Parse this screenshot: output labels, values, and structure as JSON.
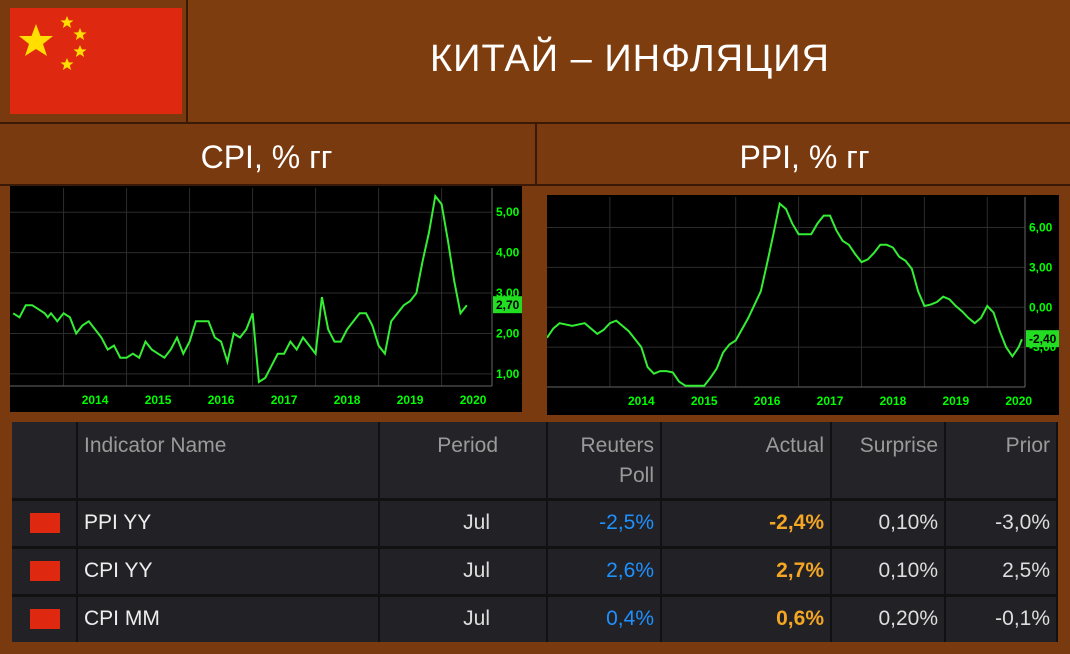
{
  "title": "КИТАЙ – ИНФЛЯЦИЯ",
  "cpi_title": "CPI, % гг",
  "ppi_title": "PPI, % гг",
  "colors": {
    "background": "#7a3a10",
    "flag_red": "#de2910",
    "flag_yellow": "#ffde00",
    "line": "#33ee33",
    "poll": "#1e90ff",
    "actual": "#f5a623"
  },
  "chart_data": [
    {
      "type": "line",
      "title": "CPI, % гг",
      "x_ticks": [
        "2014",
        "2015",
        "2016",
        "2017",
        "2018",
        "2019",
        "2020"
      ],
      "y_ticks": [
        "5,00",
        "4,00",
        "3,00",
        "2,00",
        "1,00"
      ],
      "last_label": "2,70",
      "ylim": [
        0.7,
        5.6
      ],
      "xlim": [
        2013.15,
        2020.8
      ],
      "series": [
        {
          "values": [
            [
              2013.2,
              2.5
            ],
            [
              2013.3,
              2.4
            ],
            [
              2013.4,
              2.7
            ],
            [
              2013.5,
              2.7
            ],
            [
              2013.6,
              2.6
            ],
            [
              2013.7,
              2.5
            ],
            [
              2013.75,
              2.4
            ],
            [
              2013.8,
              2.5
            ],
            [
              2013.9,
              2.3
            ],
            [
              2014.0,
              2.5
            ],
            [
              2014.1,
              2.4
            ],
            [
              2014.2,
              2.0
            ],
            [
              2014.3,
              2.2
            ],
            [
              2014.4,
              2.3
            ],
            [
              2014.5,
              2.1
            ],
            [
              2014.6,
              1.9
            ],
            [
              2014.7,
              1.6
            ],
            [
              2014.8,
              1.7
            ],
            [
              2014.9,
              1.4
            ],
            [
              2015.0,
              1.4
            ],
            [
              2015.1,
              1.5
            ],
            [
              2015.2,
              1.4
            ],
            [
              2015.3,
              1.8
            ],
            [
              2015.4,
              1.6
            ],
            [
              2015.5,
              1.5
            ],
            [
              2015.6,
              1.4
            ],
            [
              2015.7,
              1.6
            ],
            [
              2015.8,
              1.9
            ],
            [
              2015.9,
              1.5
            ],
            [
              2016.0,
              1.8
            ],
            [
              2016.1,
              2.3
            ],
            [
              2016.2,
              2.3
            ],
            [
              2016.3,
              2.3
            ],
            [
              2016.4,
              1.9
            ],
            [
              2016.5,
              1.8
            ],
            [
              2016.6,
              1.3
            ],
            [
              2016.7,
              2.0
            ],
            [
              2016.8,
              1.9
            ],
            [
              2016.9,
              2.1
            ],
            [
              2017.0,
              2.5
            ],
            [
              2017.1,
              0.8
            ],
            [
              2017.2,
              0.9
            ],
            [
              2017.3,
              1.2
            ],
            [
              2017.4,
              1.5
            ],
            [
              2017.5,
              1.5
            ],
            [
              2017.6,
              1.8
            ],
            [
              2017.7,
              1.6
            ],
            [
              2017.8,
              1.9
            ],
            [
              2017.9,
              1.7
            ],
            [
              2018.0,
              1.5
            ],
            [
              2018.1,
              2.9
            ],
            [
              2018.2,
              2.1
            ],
            [
              2018.3,
              1.8
            ],
            [
              2018.4,
              1.8
            ],
            [
              2018.5,
              2.1
            ],
            [
              2018.6,
              2.3
            ],
            [
              2018.7,
              2.5
            ],
            [
              2018.8,
              2.5
            ],
            [
              2018.9,
              2.2
            ],
            [
              2019.0,
              1.7
            ],
            [
              2019.1,
              1.5
            ],
            [
              2019.2,
              2.3
            ],
            [
              2019.3,
              2.5
            ],
            [
              2019.4,
              2.7
            ],
            [
              2019.5,
              2.8
            ],
            [
              2019.6,
              3.0
            ],
            [
              2019.7,
              3.8
            ],
            [
              2019.8,
              4.5
            ],
            [
              2019.9,
              5.4
            ],
            [
              2020.0,
              5.2
            ],
            [
              2020.1,
              4.3
            ],
            [
              2020.2,
              3.3
            ],
            [
              2020.3,
              2.5
            ],
            [
              2020.4,
              2.7
            ]
          ]
        }
      ]
    },
    {
      "type": "line",
      "title": "PPI, % гг",
      "x_ticks": [
        "2014",
        "2015",
        "2016",
        "2017",
        "2018",
        "2019",
        "2020"
      ],
      "y_ticks": [
        "6,00",
        "3,00",
        "0,00",
        "-3,00"
      ],
      "last_label": "-2,40",
      "ylim": [
        -6.0,
        8.3
      ],
      "xlim": [
        2013.0,
        2020.6
      ],
      "series": [
        {
          "values": [
            [
              2013.0,
              -2.3
            ],
            [
              2013.1,
              -1.6
            ],
            [
              2013.2,
              -1.2
            ],
            [
              2013.4,
              -1.4
            ],
            [
              2013.6,
              -1.2
            ],
            [
              2013.8,
              -2.0
            ],
            [
              2013.9,
              -1.7
            ],
            [
              2014.0,
              -1.2
            ],
            [
              2014.1,
              -1.0
            ],
            [
              2014.3,
              -1.8
            ],
            [
              2014.5,
              -3.0
            ],
            [
              2014.6,
              -4.5
            ],
            [
              2014.7,
              -5.0
            ],
            [
              2014.8,
              -4.8
            ],
            [
              2014.9,
              -4.8
            ],
            [
              2015.0,
              -4.9
            ],
            [
              2015.1,
              -5.6
            ],
            [
              2015.2,
              -5.9
            ],
            [
              2015.3,
              -5.9
            ],
            [
              2015.5,
              -5.9
            ],
            [
              2015.6,
              -5.3
            ],
            [
              2015.7,
              -4.6
            ],
            [
              2015.8,
              -3.4
            ],
            [
              2015.9,
              -2.8
            ],
            [
              2016.0,
              -2.5
            ],
            [
              2016.2,
              -0.8
            ],
            [
              2016.4,
              1.2
            ],
            [
              2016.5,
              3.3
            ],
            [
              2016.6,
              5.5
            ],
            [
              2016.7,
              7.8
            ],
            [
              2016.8,
              7.4
            ],
            [
              2016.9,
              6.3
            ],
            [
              2017.0,
              5.5
            ],
            [
              2017.1,
              5.5
            ],
            [
              2017.2,
              5.5
            ],
            [
              2017.3,
              6.3
            ],
            [
              2017.4,
              6.9
            ],
            [
              2017.5,
              6.9
            ],
            [
              2017.6,
              5.8
            ],
            [
              2017.7,
              5.0
            ],
            [
              2017.8,
              4.7
            ],
            [
              2017.9,
              4.0
            ],
            [
              2018.0,
              3.4
            ],
            [
              2018.1,
              3.6
            ],
            [
              2018.2,
              4.1
            ],
            [
              2018.3,
              4.7
            ],
            [
              2018.4,
              4.7
            ],
            [
              2018.5,
              4.5
            ],
            [
              2018.6,
              3.8
            ],
            [
              2018.7,
              3.5
            ],
            [
              2018.8,
              2.9
            ],
            [
              2018.9,
              1.2
            ],
            [
              2019.0,
              0.1
            ],
            [
              2019.1,
              0.2
            ],
            [
              2019.2,
              0.4
            ],
            [
              2019.3,
              0.8
            ],
            [
              2019.4,
              0.6
            ],
            [
              2019.5,
              0.1
            ],
            [
              2019.6,
              -0.3
            ],
            [
              2019.7,
              -0.8
            ],
            [
              2019.8,
              -1.2
            ],
            [
              2019.9,
              -0.8
            ],
            [
              2020.0,
              0.1
            ],
            [
              2020.1,
              -0.4
            ],
            [
              2020.2,
              -1.8
            ],
            [
              2020.3,
              -3.0
            ],
            [
              2020.4,
              -3.7
            ],
            [
              2020.5,
              -3.0
            ],
            [
              2020.55,
              -2.4
            ]
          ]
        }
      ]
    }
  ],
  "table": {
    "headers": {
      "name": "Indicator Name",
      "period": "Period",
      "poll_1": "Reuters",
      "poll_2": "Poll",
      "actual": "Actual",
      "surprise": "Surprise",
      "prior": "Prior"
    },
    "rows": [
      {
        "name": "PPI YY",
        "period": "Jul",
        "poll": "-2,5%",
        "actual": "-2,4%",
        "surprise": "0,10%",
        "prior": "-3,0%"
      },
      {
        "name": "CPI YY",
        "period": "Jul",
        "poll": "2,6%",
        "actual": "2,7%",
        "surprise": "0,10%",
        "prior": "2,5%"
      },
      {
        "name": "CPI MM",
        "period": "Jul",
        "poll": "0,4%",
        "actual": "0,6%",
        "surprise": "0,20%",
        "prior": "-0,1%"
      }
    ]
  }
}
